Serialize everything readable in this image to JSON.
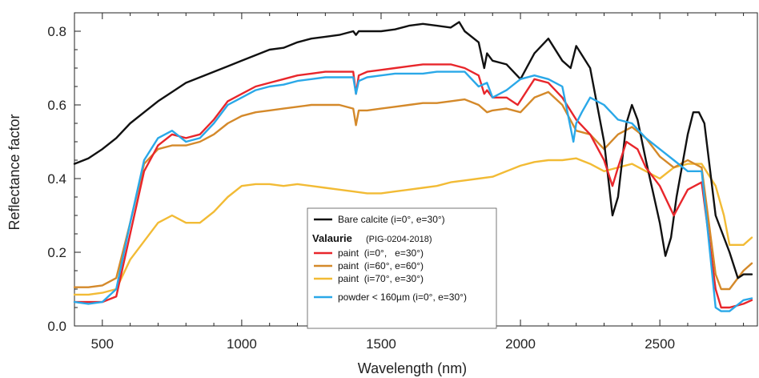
{
  "chart_data": {
    "type": "line",
    "xlabel": "Wavelength (nm)",
    "ylabel": "Reflectance factor",
    "xlim": [
      400,
      2850
    ],
    "ylim": [
      0,
      0.85
    ],
    "xticks": [
      500,
      1000,
      1500,
      2000,
      2500
    ],
    "xtick_labels": [
      "500",
      "1000",
      "1500",
      "2000",
      "2500"
    ],
    "yticks": [
      0.0,
      0.2,
      0.4,
      0.6,
      0.8
    ],
    "ytick_labels": [
      "0.0",
      "0.2",
      "0.4",
      "0.6",
      "0.8"
    ],
    "grid": false,
    "legend_position": "bottom-center",
    "legend": {
      "group_title": "Valaurie",
      "group_sub": "(PIG-0204-2018)"
    },
    "series": [
      {
        "name": "Bare calcite (i=0°, e=30°)",
        "color": "#111111",
        "x": [
          400,
          450,
          500,
          550,
          600,
          650,
          700,
          750,
          800,
          850,
          900,
          950,
          1000,
          1050,
          1100,
          1150,
          1200,
          1250,
          1300,
          1350,
          1400,
          1410,
          1420,
          1450,
          1500,
          1550,
          1600,
          1650,
          1700,
          1750,
          1780,
          1800,
          1850,
          1870,
          1880,
          1900,
          1950,
          2000,
          2050,
          2100,
          2150,
          2180,
          2200,
          2250,
          2300,
          2330,
          2350,
          2380,
          2400,
          2420,
          2450,
          2500,
          2520,
          2540,
          2560,
          2600,
          2620,
          2640,
          2660,
          2700,
          2750,
          2780,
          2800,
          2830
        ],
        "y": [
          0.44,
          0.455,
          0.48,
          0.51,
          0.55,
          0.58,
          0.61,
          0.635,
          0.66,
          0.675,
          0.69,
          0.705,
          0.72,
          0.735,
          0.75,
          0.755,
          0.77,
          0.78,
          0.785,
          0.79,
          0.8,
          0.79,
          0.8,
          0.8,
          0.8,
          0.805,
          0.815,
          0.82,
          0.815,
          0.81,
          0.825,
          0.8,
          0.77,
          0.7,
          0.74,
          0.72,
          0.71,
          0.67,
          0.74,
          0.78,
          0.72,
          0.7,
          0.76,
          0.7,
          0.5,
          0.3,
          0.35,
          0.55,
          0.6,
          0.56,
          0.45,
          0.28,
          0.19,
          0.24,
          0.35,
          0.52,
          0.58,
          0.58,
          0.55,
          0.3,
          0.2,
          0.13,
          0.14,
          0.14
        ]
      },
      {
        "name": "paint  (i=0°,   e=30°)",
        "color": "#e8262b",
        "x": [
          400,
          450,
          500,
          550,
          600,
          650,
          700,
          750,
          800,
          850,
          900,
          950,
          1000,
          1050,
          1100,
          1150,
          1200,
          1250,
          1300,
          1350,
          1400,
          1410,
          1420,
          1450,
          1500,
          1550,
          1600,
          1650,
          1700,
          1750,
          1800,
          1850,
          1870,
          1880,
          1900,
          1950,
          1990,
          2050,
          2100,
          2150,
          2200,
          2250,
          2300,
          2330,
          2350,
          2380,
          2400,
          2420,
          2450,
          2500,
          2550,
          2600,
          2650,
          2700,
          2720,
          2750,
          2800,
          2830
        ],
        "y": [
          0.065,
          0.065,
          0.065,
          0.08,
          0.25,
          0.42,
          0.49,
          0.52,
          0.51,
          0.52,
          0.56,
          0.61,
          0.63,
          0.65,
          0.66,
          0.67,
          0.68,
          0.685,
          0.69,
          0.69,
          0.69,
          0.63,
          0.68,
          0.69,
          0.695,
          0.7,
          0.705,
          0.71,
          0.71,
          0.71,
          0.7,
          0.68,
          0.63,
          0.64,
          0.62,
          0.62,
          0.6,
          0.67,
          0.66,
          0.62,
          0.56,
          0.52,
          0.45,
          0.38,
          0.43,
          0.5,
          0.49,
          0.48,
          0.43,
          0.38,
          0.3,
          0.37,
          0.39,
          0.1,
          0.05,
          0.05,
          0.06,
          0.07
        ]
      },
      {
        "name": "paint  (i=60°, e=60°)",
        "color": "#d4892a",
        "x": [
          400,
          450,
          500,
          550,
          600,
          650,
          700,
          750,
          800,
          850,
          900,
          950,
          1000,
          1050,
          1100,
          1150,
          1200,
          1250,
          1300,
          1350,
          1400,
          1410,
          1420,
          1450,
          1500,
          1550,
          1600,
          1650,
          1700,
          1750,
          1800,
          1850,
          1880,
          1900,
          1950,
          2000,
          2050,
          2100,
          2150,
          2200,
          2250,
          2300,
          2350,
          2400,
          2450,
          2500,
          2550,
          2600,
          2650,
          2700,
          2720,
          2750,
          2800,
          2830
        ],
        "y": [
          0.105,
          0.105,
          0.11,
          0.13,
          0.28,
          0.44,
          0.48,
          0.49,
          0.49,
          0.5,
          0.52,
          0.55,
          0.57,
          0.58,
          0.585,
          0.59,
          0.595,
          0.6,
          0.6,
          0.6,
          0.59,
          0.545,
          0.585,
          0.585,
          0.59,
          0.595,
          0.6,
          0.605,
          0.605,
          0.61,
          0.615,
          0.6,
          0.58,
          0.585,
          0.59,
          0.58,
          0.62,
          0.635,
          0.6,
          0.53,
          0.52,
          0.48,
          0.52,
          0.54,
          0.51,
          0.46,
          0.43,
          0.45,
          0.43,
          0.14,
          0.1,
          0.1,
          0.15,
          0.17
        ]
      },
      {
        "name": "paint  (i=70°, e=30°)",
        "color": "#f2bb35",
        "x": [
          400,
          450,
          500,
          550,
          600,
          650,
          700,
          750,
          800,
          850,
          900,
          950,
          1000,
          1050,
          1100,
          1150,
          1200,
          1250,
          1300,
          1350,
          1400,
          1450,
          1500,
          1550,
          1600,
          1650,
          1700,
          1750,
          1800,
          1850,
          1900,
          1950,
          2000,
          2050,
          2100,
          2150,
          2200,
          2250,
          2300,
          2350,
          2400,
          2450,
          2500,
          2550,
          2600,
          2650,
          2700,
          2730,
          2750,
          2800,
          2830
        ],
        "y": [
          0.085,
          0.085,
          0.09,
          0.1,
          0.18,
          0.23,
          0.28,
          0.3,
          0.28,
          0.28,
          0.31,
          0.35,
          0.38,
          0.385,
          0.385,
          0.38,
          0.385,
          0.38,
          0.375,
          0.37,
          0.365,
          0.36,
          0.36,
          0.365,
          0.37,
          0.375,
          0.38,
          0.39,
          0.395,
          0.4,
          0.405,
          0.42,
          0.435,
          0.445,
          0.45,
          0.45,
          0.455,
          0.44,
          0.42,
          0.43,
          0.44,
          0.42,
          0.4,
          0.43,
          0.44,
          0.44,
          0.38,
          0.3,
          0.22,
          0.22,
          0.24
        ]
      },
      {
        "name": "powder < 160µm (i=0°, e=30°)",
        "color": "#2aa8e8",
        "x": [
          400,
          450,
          500,
          550,
          600,
          650,
          700,
          750,
          800,
          850,
          900,
          950,
          1000,
          1050,
          1100,
          1150,
          1200,
          1250,
          1300,
          1350,
          1400,
          1410,
          1420,
          1450,
          1500,
          1550,
          1600,
          1650,
          1700,
          1750,
          1800,
          1850,
          1880,
          1900,
          1950,
          2000,
          2050,
          2100,
          2150,
          2190,
          2200,
          2220,
          2250,
          2300,
          2350,
          2400,
          2450,
          2500,
          2550,
          2600,
          2650,
          2700,
          2720,
          2750,
          2800,
          2830
        ],
        "y": [
          0.065,
          0.06,
          0.065,
          0.1,
          0.28,
          0.45,
          0.51,
          0.53,
          0.5,
          0.51,
          0.55,
          0.6,
          0.62,
          0.64,
          0.65,
          0.655,
          0.665,
          0.67,
          0.675,
          0.675,
          0.675,
          0.63,
          0.665,
          0.675,
          0.68,
          0.685,
          0.685,
          0.685,
          0.69,
          0.69,
          0.69,
          0.65,
          0.66,
          0.62,
          0.64,
          0.67,
          0.68,
          0.67,
          0.65,
          0.5,
          0.55,
          0.58,
          0.62,
          0.6,
          0.56,
          0.55,
          0.51,
          0.48,
          0.45,
          0.42,
          0.42,
          0.05,
          0.04,
          0.04,
          0.07,
          0.075
        ]
      }
    ]
  }
}
